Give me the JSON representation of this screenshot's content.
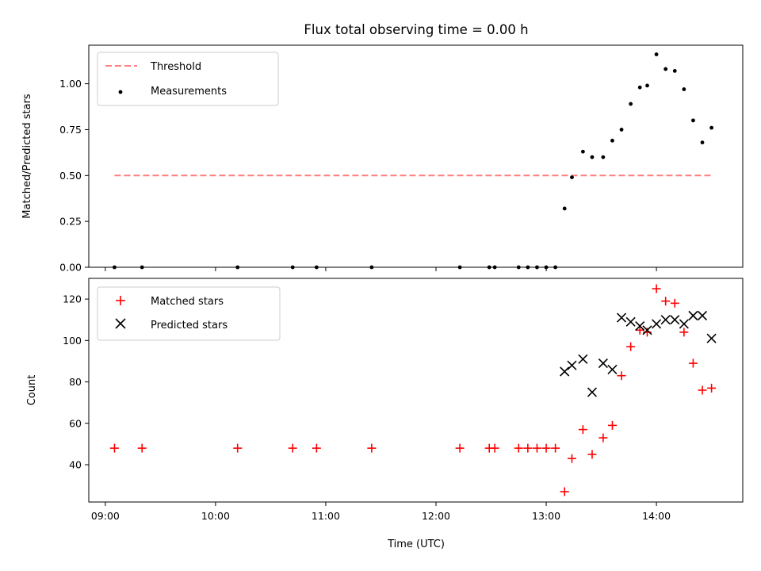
{
  "chart_data": [
    {
      "type": "scatter",
      "title": "Flux total observing time = 0.00 h",
      "xlabel": "",
      "ylabel": "Matched/Predicted stars",
      "xlim": [
        "08:51",
        "14:47"
      ],
      "ylim": [
        0,
        1.21
      ],
      "yticks": [
        "0.00",
        "0.25",
        "0.50",
        "0.75",
        "1.00"
      ],
      "legend_position": "top-left",
      "series": [
        {
          "name": "Threshold",
          "kind": "dashed-line",
          "color": "#ff7f7f",
          "x": [
            "09:05",
            "14:30"
          ],
          "y": [
            0.5,
            0.5
          ]
        },
        {
          "name": "Measurements",
          "kind": "dot",
          "color": "#000000",
          "x": [
            "09:05",
            "09:20",
            "10:12",
            "10:42",
            "10:55",
            "11:25",
            "12:13",
            "12:29",
            "12:32",
            "12:45",
            "12:50",
            "12:55",
            "13:00",
            "13:05",
            "13:10",
            "13:14",
            "13:20",
            "13:25",
            "13:31",
            "13:36",
            "13:41",
            "13:46",
            "13:51",
            "13:55",
            "14:00",
            "14:05",
            "14:10",
            "14:15",
            "14:20",
            "14:25",
            "14:30"
          ],
          "y": [
            0,
            0,
            0,
            0,
            0,
            0,
            0,
            0,
            0,
            0,
            0,
            0,
            0,
            0,
            0.32,
            0.49,
            0.63,
            0.6,
            0.6,
            0.69,
            0.75,
            0.89,
            0.98,
            0.99,
            1.16,
            1.08,
            1.07,
            0.97,
            0.8,
            0.68,
            0.76
          ]
        }
      ]
    },
    {
      "type": "scatter",
      "title": "",
      "xlabel": "Time (UTC)",
      "ylabel": "Count",
      "xlim": [
        "08:51",
        "14:47"
      ],
      "ylim": [
        22,
        130
      ],
      "xticks": [
        "09:00",
        "10:00",
        "11:00",
        "12:00",
        "13:00",
        "14:00"
      ],
      "yticks": [
        "40",
        "60",
        "80",
        "100",
        "120"
      ],
      "legend_position": "top-left",
      "series": [
        {
          "name": "Matched stars",
          "kind": "plus",
          "color": "#ff0000",
          "x": [
            "09:05",
            "09:20",
            "10:12",
            "10:42",
            "10:55",
            "11:25",
            "12:13",
            "12:29",
            "12:32",
            "12:45",
            "12:50",
            "12:55",
            "13:00",
            "13:05",
            "13:10",
            "13:14",
            "13:20",
            "13:25",
            "13:31",
            "13:36",
            "13:41",
            "13:46",
            "13:51",
            "13:55",
            "14:00",
            "14:05",
            "14:10",
            "14:15",
            "14:20",
            "14:25",
            "14:30"
          ],
          "y": [
            48,
            48,
            48,
            48,
            48,
            48,
            48,
            48,
            48,
            48,
            48,
            48,
            48,
            48,
            27,
            43,
            57,
            45,
            53,
            59,
            83,
            97,
            105,
            104,
            125,
            119,
            118,
            104,
            89,
            76,
            77
          ]
        },
        {
          "name": "Predicted stars",
          "kind": "x",
          "color": "#000000",
          "x": [
            "13:10",
            "13:14",
            "13:20",
            "13:25",
            "13:31",
            "13:36",
            "13:41",
            "13:46",
            "13:51",
            "13:55",
            "14:00",
            "14:05",
            "14:10",
            "14:15",
            "14:20",
            "14:25",
            "14:30"
          ],
          "y": [
            85,
            88,
            91,
            75,
            89,
            86,
            111,
            109,
            107,
            105,
            108,
            110,
            110,
            108,
            112,
            112,
            101
          ]
        }
      ]
    }
  ]
}
